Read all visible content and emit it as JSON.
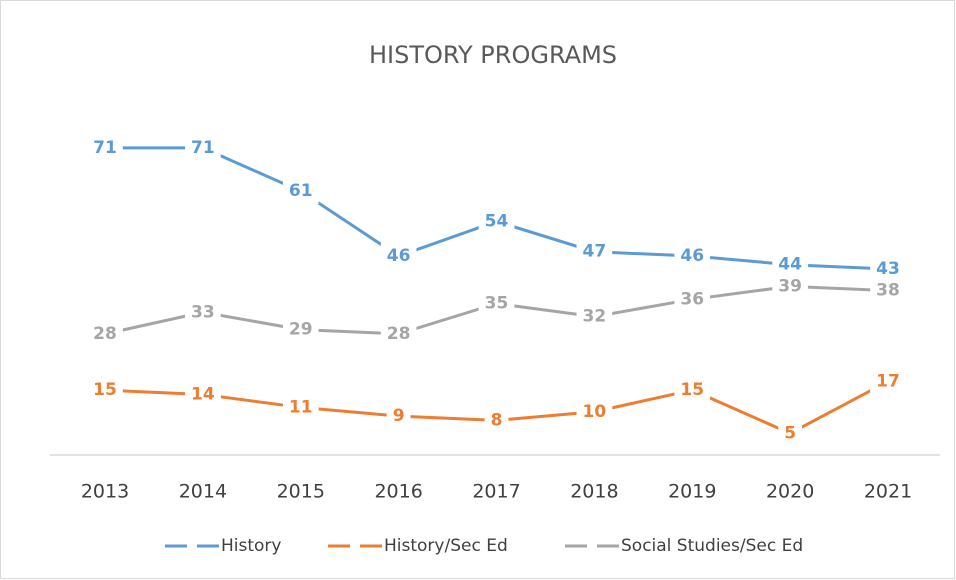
{
  "chart_data": {
    "type": "line",
    "title": "HISTORY PROGRAMS",
    "categories": [
      "2013",
      "2014",
      "2015",
      "2016",
      "2017",
      "2018",
      "2019",
      "2020",
      "2021"
    ],
    "series": [
      {
        "name": "History",
        "color": "#5b9bd5",
        "values": [
          71,
          71,
          61,
          46,
          54,
          47,
          46,
          44,
          43
        ]
      },
      {
        "name": "History/Sec Ed",
        "color": "#ed7d31",
        "values": [
          15,
          14,
          11,
          9,
          8,
          10,
          15,
          5,
          17
        ]
      },
      {
        "name": "Social Studies/Sec Ed",
        "color": "#a5a5a5",
        "values": [
          28,
          33,
          29,
          28,
          35,
          32,
          36,
          39,
          38
        ]
      }
    ],
    "ylim": [
      0,
      80
    ],
    "legend": "bottom"
  }
}
